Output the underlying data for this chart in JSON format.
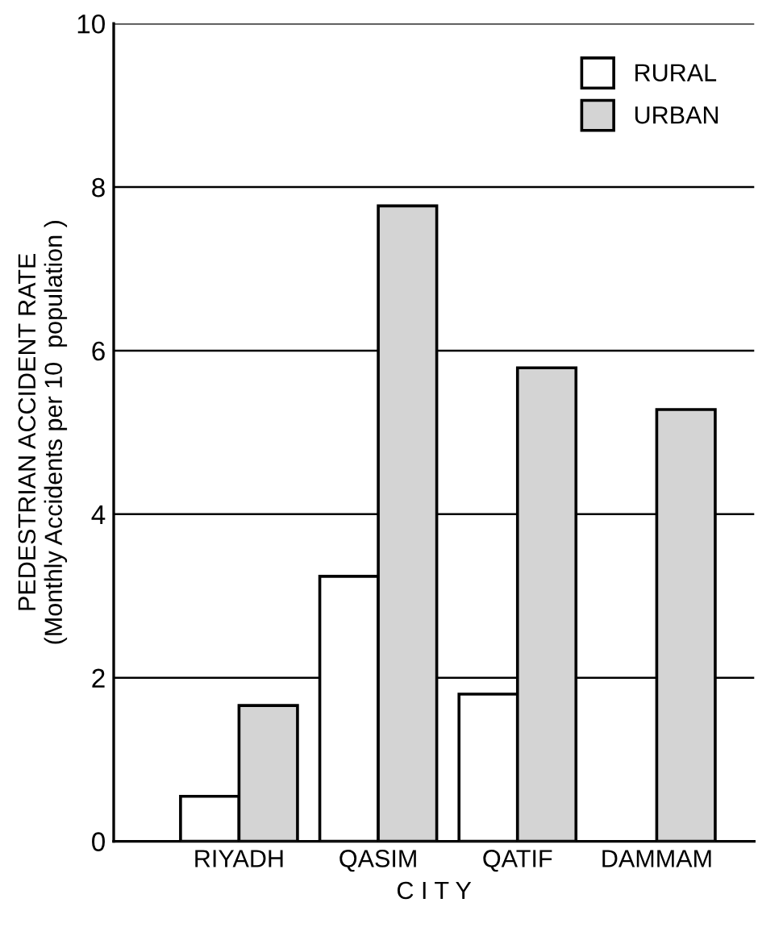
{
  "chart_data": {
    "type": "bar",
    "categories": [
      "RIYADH",
      "QASIM",
      "QATIF",
      "DAMMAM"
    ],
    "xlabel": "C I T Y",
    "ylabel": "PEDESTRIAN ACCIDENT RATE\n(Monthly Accidents per 10  population )",
    "series": [
      {
        "name": "RURAL",
        "color": "#ffffff",
        "values": [
          0.55,
          3.24,
          1.8,
          null
        ]
      },
      {
        "name": "URBAN",
        "color": "#d4d4d4",
        "values": [
          1.66,
          7.77,
          5.79,
          5.28
        ]
      }
    ],
    "ylim": [
      0,
      10
    ],
    "yticks": [
      0,
      2,
      4,
      6,
      8,
      10
    ],
    "grid": "y",
    "legend": "top right"
  }
}
